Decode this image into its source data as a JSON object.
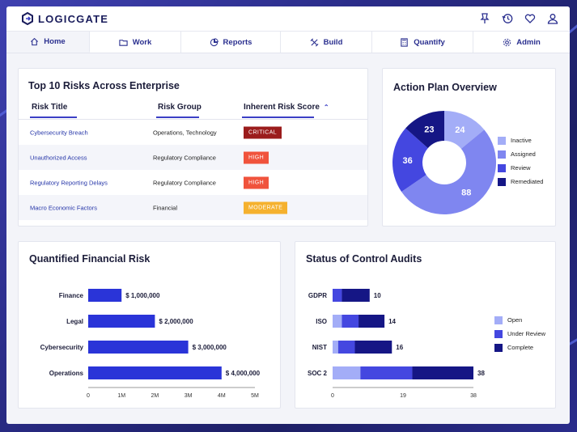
{
  "app": {
    "logo_text": "LOGICGATE"
  },
  "nav": {
    "items": [
      {
        "label": "Home",
        "icon": "home-icon"
      },
      {
        "label": "Work",
        "icon": "folder-icon"
      },
      {
        "label": "Reports",
        "icon": "pie-chart-icon"
      },
      {
        "label": "Build",
        "icon": "tools-icon"
      },
      {
        "label": "Quantify",
        "icon": "calculator-icon"
      },
      {
        "label": "Admin",
        "icon": "gear-icon"
      }
    ]
  },
  "top_icons": [
    "pin-icon",
    "history-icon",
    "heart-icon",
    "user-icon"
  ],
  "risks": {
    "title": "Top 10 Risks Across Enterprise",
    "columns": [
      "Risk Title",
      "Risk Group",
      "Inherent Risk Score"
    ],
    "sort_icon": "sort-icon",
    "rows": [
      {
        "title": "Cybersecurity Breach",
        "group": "Operations, Technology",
        "score": "CRITICAL",
        "color": "#9b1c1c"
      },
      {
        "title": "Unauthorized Access",
        "group": "Regulatory Compliance",
        "score": "HIGH",
        "color": "#f0533c"
      },
      {
        "title": "Regulatory Reporting Delays",
        "group": "Regulatory Compliance",
        "score": "HIGH",
        "color": "#f0533c"
      },
      {
        "title": "Macro Economic Factors",
        "group": "Financial",
        "score": "MODERATE",
        "color": "#f5b12e"
      }
    ]
  },
  "action_plan": {
    "title": "Action Plan Overview",
    "chart_data": {
      "type": "pie",
      "title": "Action Plan Overview",
      "categories": [
        "Inactive",
        "Assigned",
        "Review",
        "Remediated"
      ],
      "values": [
        24,
        88,
        36,
        23
      ],
      "colors": [
        "#a3adf7",
        "#7f86f0",
        "#4447e0",
        "#151685"
      ]
    }
  },
  "financial": {
    "title": "Quantified Financial Risk",
    "chart_data": {
      "type": "bar",
      "orientation": "horizontal",
      "categories": [
        "Finance",
        "Legal",
        "Cybersecurity",
        "Operations"
      ],
      "values": [
        1000000,
        2000000,
        3000000,
        4000000
      ],
      "value_labels": [
        "$ 1,000,000",
        "$ 2,000,000",
        "$ 3,000,000",
        "$ 4,000,000"
      ],
      "xlim": [
        0,
        5000000
      ],
      "xticks": [
        0,
        1000000,
        2000000,
        3000000,
        4000000,
        5000000
      ],
      "xtick_labels": [
        "0",
        "1M",
        "2M",
        "3M",
        "4M",
        "5M"
      ],
      "color": "#2a34d8"
    }
  },
  "audits": {
    "title": "Status of Control Audits",
    "chart_data": {
      "type": "bar",
      "orientation": "horizontal",
      "stacked": true,
      "categories": [
        "GDPR",
        "ISO",
        "NIST",
        "SOC 2"
      ],
      "series": [
        {
          "name": "Open",
          "values": [
            0,
            2.5,
            1.5,
            7.5
          ],
          "color": "#a3adf7"
        },
        {
          "name": "Under Review",
          "values": [
            2.5,
            4.5,
            4.5,
            14
          ],
          "color": "#4447e0"
        },
        {
          "name": "Complete",
          "values": [
            7.5,
            7,
            10,
            16.5
          ],
          "color": "#151685"
        }
      ],
      "totals": [
        10,
        14,
        16,
        38
      ],
      "xlim": [
        0,
        38
      ],
      "xticks": [
        0,
        19,
        38
      ],
      "xtick_labels": [
        "0",
        "19",
        "38"
      ]
    }
  }
}
